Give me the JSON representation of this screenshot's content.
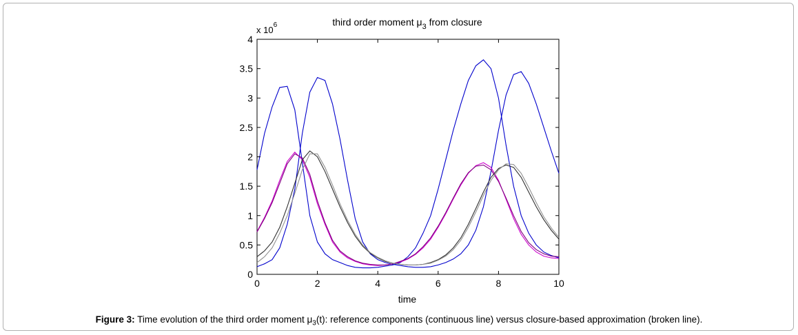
{
  "chart_data": {
    "type": "line",
    "title_main": "third order moment μ",
    "title_sub": "3",
    "title_after": " from closure",
    "exponent_prefix": "x 10",
    "exponent_power": "6",
    "xlabel": "time",
    "ylabel": "",
    "xlim": [
      0,
      10
    ],
    "ylim": [
      0,
      4
    ],
    "xticks": [
      "0",
      "2",
      "4",
      "6",
      "8",
      "10"
    ],
    "yticks": [
      "0",
      "0.5",
      "1",
      "1.5",
      "2",
      "2.5",
      "3",
      "3.5",
      "4"
    ],
    "grid": false,
    "legend": "none",
    "x": [
      0,
      0.25,
      0.5,
      0.75,
      1,
      1.25,
      1.5,
      1.75,
      2,
      2.25,
      2.5,
      2.75,
      3,
      3.25,
      3.5,
      3.75,
      4,
      4.25,
      4.5,
      4.75,
      5,
      5.25,
      5.5,
      5.75,
      6,
      6.25,
      6.5,
      6.75,
      7,
      7.25,
      7.5,
      7.75,
      8,
      8.25,
      8.5,
      8.75,
      9,
      9.25,
      9.5,
      9.75,
      10
    ],
    "series": [
      {
        "color": "#0000cc",
        "values": [
          1.78,
          2.4,
          2.85,
          3.18,
          3.2,
          2.8,
          1.9,
          1.0,
          0.55,
          0.35,
          0.25,
          0.2,
          0.15,
          0.12,
          0.11,
          0.11,
          0.12,
          0.14,
          0.16,
          0.2,
          0.3,
          0.45,
          0.7,
          1.0,
          1.45,
          1.95,
          2.45,
          2.9,
          3.3,
          3.55,
          3.65,
          3.5,
          3.0,
          2.2,
          1.5,
          1.0,
          0.7,
          0.5,
          0.38,
          0.32,
          0.28
        ]
      },
      {
        "color": "#0000cc",
        "values": [
          0.13,
          0.18,
          0.25,
          0.45,
          0.85,
          1.45,
          2.4,
          3.1,
          3.35,
          3.3,
          2.9,
          2.3,
          1.6,
          0.95,
          0.55,
          0.35,
          0.25,
          0.2,
          0.17,
          0.15,
          0.13,
          0.12,
          0.12,
          0.13,
          0.16,
          0.2,
          0.26,
          0.35,
          0.5,
          0.75,
          1.15,
          1.75,
          2.45,
          3.05,
          3.4,
          3.45,
          3.25,
          2.9,
          2.5,
          2.1,
          1.72
        ]
      },
      {
        "color": "#cc00cc",
        "values": [
          0.73,
          0.97,
          1.25,
          1.6,
          1.92,
          2.08,
          1.95,
          1.65,
          1.2,
          0.85,
          0.55,
          0.38,
          0.28,
          0.22,
          0.18,
          0.16,
          0.15,
          0.16,
          0.18,
          0.21,
          0.26,
          0.34,
          0.45,
          0.6,
          0.8,
          1.03,
          1.28,
          1.52,
          1.72,
          1.85,
          1.9,
          1.82,
          1.6,
          1.28,
          0.95,
          0.68,
          0.5,
          0.38,
          0.31,
          0.28,
          0.27
        ]
      },
      {
        "color": "#800080",
        "values": [
          0.72,
          0.95,
          1.22,
          1.55,
          1.88,
          2.05,
          1.98,
          1.7,
          1.25,
          0.88,
          0.58,
          0.4,
          0.3,
          0.23,
          0.19,
          0.17,
          0.16,
          0.16,
          0.18,
          0.22,
          0.27,
          0.35,
          0.47,
          0.62,
          0.82,
          1.05,
          1.3,
          1.54,
          1.73,
          1.84,
          1.86,
          1.78,
          1.58,
          1.3,
          1.0,
          0.73,
          0.54,
          0.42,
          0.35,
          0.31,
          0.3
        ]
      },
      {
        "color": "#303030",
        "values": [
          0.3,
          0.4,
          0.55,
          0.8,
          1.15,
          1.55,
          1.95,
          2.1,
          2.0,
          1.75,
          1.45,
          1.15,
          0.88,
          0.65,
          0.48,
          0.36,
          0.28,
          0.22,
          0.19,
          0.17,
          0.16,
          0.16,
          0.17,
          0.2,
          0.25,
          0.33,
          0.45,
          0.62,
          0.85,
          1.12,
          1.4,
          1.65,
          1.8,
          1.86,
          1.82,
          1.65,
          1.4,
          1.15,
          0.93,
          0.75,
          0.6
        ]
      },
      {
        "color": "#909090",
        "values": [
          0.2,
          0.3,
          0.45,
          0.7,
          1.0,
          1.38,
          1.78,
          2.05,
          2.05,
          1.82,
          1.52,
          1.2,
          0.92,
          0.68,
          0.5,
          0.37,
          0.29,
          0.23,
          0.19,
          0.17,
          0.16,
          0.16,
          0.17,
          0.19,
          0.24,
          0.31,
          0.42,
          0.58,
          0.8,
          1.06,
          1.34,
          1.6,
          1.78,
          1.88,
          1.87,
          1.72,
          1.48,
          1.22,
          0.98,
          0.79,
          0.63
        ]
      }
    ]
  },
  "caption": {
    "label": "Figure 3:",
    "text_before": " Time evolution of the third order moment μ",
    "sub": "3",
    "text_after": "(t): reference components (continuous line) versus closure-based approximation (broken line)."
  }
}
